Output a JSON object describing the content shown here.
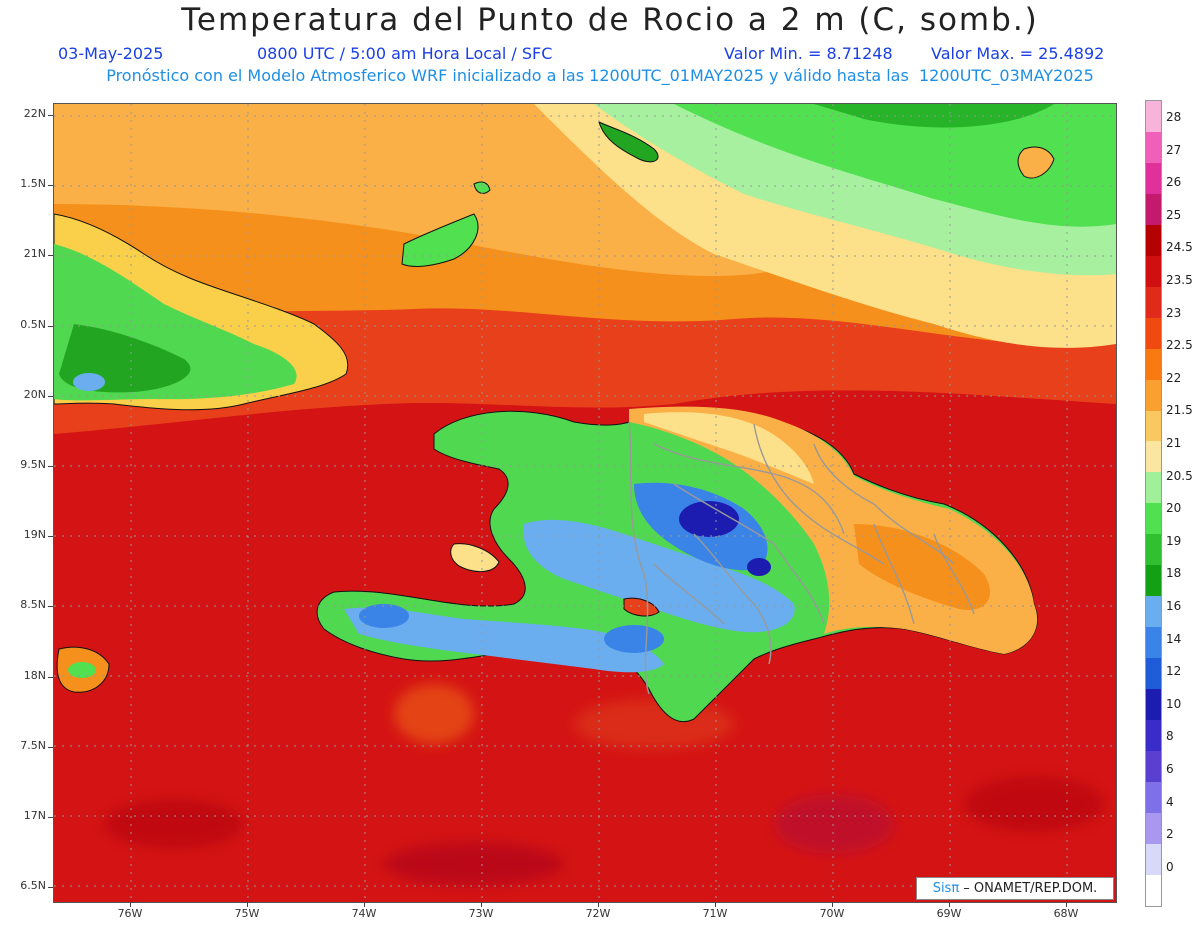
{
  "header": {
    "title": "Temperatura del Punto de Rocio a 2 m (C, somb.)",
    "date": "03-May-2025",
    "time": "0800 UTC / 5:00 am Hora Local / SFC",
    "min": "Valor Min. = 8.71248",
    "max": "Valor Max. = 25.4892",
    "forecast": "Pronóstico con el Modelo Atmosferico WRF inicializado a las 1200UTC_01MAY2025 y válido hasta las  1200UTC_03MAY2025"
  },
  "axes": {
    "y_labels": [
      "22N",
      "1.5N",
      "21N",
      "0.5N",
      "20N",
      "9.5N",
      "19N",
      "8.5N",
      "18N",
      "7.5N",
      "17N",
      "6.5N"
    ],
    "x_labels": [
      "76W",
      "75W",
      "74W",
      "73W",
      "72W",
      "71W",
      "70W",
      "69W",
      "68W"
    ]
  },
  "colorbar": {
    "labels": [
      "28",
      "27",
      "26",
      "25",
      "24.5",
      "23.5",
      "23",
      "22.5",
      "22",
      "21.5",
      "21",
      "20.5",
      "20",
      "19",
      "18",
      "16",
      "14",
      "12",
      "10",
      "8",
      "6",
      "4",
      "2",
      "0"
    ],
    "colors": [
      "#f7b3d9",
      "#f060b8",
      "#e0309a",
      "#c41a6e",
      "#b40000",
      "#d01010",
      "#e02a1a",
      "#f04a10",
      "#f87a10",
      "#faa030",
      "#fac860",
      "#fae6a0",
      "#a0f09a",
      "#50e050",
      "#30c030",
      "#14a014",
      "#6aaef0",
      "#3a84e8",
      "#1e5cd8",
      "#1c1cb0",
      "#3a2cc8",
      "#5a40d0",
      "#8070e8",
      "#a898f0",
      "#d8d8f8",
      "#ffffff"
    ]
  },
  "credit": {
    "sis": "Sisπ",
    "text": " – ONAMET/REP.DOM."
  }
}
